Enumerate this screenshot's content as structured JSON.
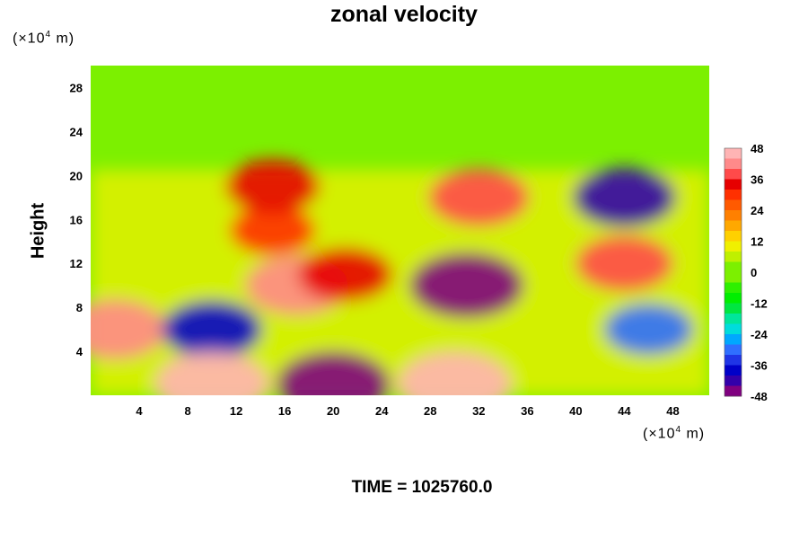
{
  "chart_data": {
    "type": "heatmap",
    "title": "zonal velocity",
    "xlabel": "",
    "ylabel": "Height",
    "x_unit_prefix": "(×10",
    "x_unit_exp": "4",
    "x_unit_suffix": " m)",
    "y_unit_prefix": "(×10",
    "y_unit_exp": "4",
    "y_unit_suffix": " m)",
    "xlim": [
      0,
      51
    ],
    "ylim": [
      0,
      30
    ],
    "x_ticks": [
      4,
      8,
      12,
      16,
      20,
      24,
      28,
      32,
      36,
      40,
      44,
      48
    ],
    "y_ticks": [
      4,
      8,
      12,
      16,
      20,
      24,
      28
    ],
    "colorbar": {
      "min": -48,
      "max": 48,
      "step": 4,
      "ticks": [
        48,
        36,
        24,
        12,
        0,
        -12,
        -24,
        -36,
        -48
      ]
    },
    "field_features": [
      {
        "x": 17,
        "y": 10,
        "value": 40
      },
      {
        "x": 21,
        "y": 11,
        "value": 34
      },
      {
        "x": 15,
        "y": 15,
        "value": 28
      },
      {
        "x": 2,
        "y": 6,
        "value": 40
      },
      {
        "x": 10,
        "y": 6,
        "value": -38
      },
      {
        "x": 31,
        "y": 10,
        "value": -48
      },
      {
        "x": 44,
        "y": 18,
        "value": -40
      },
      {
        "x": 46,
        "y": 6,
        "value": -30
      },
      {
        "x": 32,
        "y": 18,
        "value": 38
      },
      {
        "x": 20,
        "y": 1,
        "value": -48
      },
      {
        "x": 10,
        "y": 1,
        "value": 48
      },
      {
        "x": 30,
        "y": 1,
        "value": 48
      },
      {
        "x": 44,
        "y": 12,
        "value": 36
      },
      {
        "x": 15,
        "y": 19,
        "value": 34
      }
    ]
  },
  "footer": {
    "time_label": "TIME = 1025760.0"
  }
}
